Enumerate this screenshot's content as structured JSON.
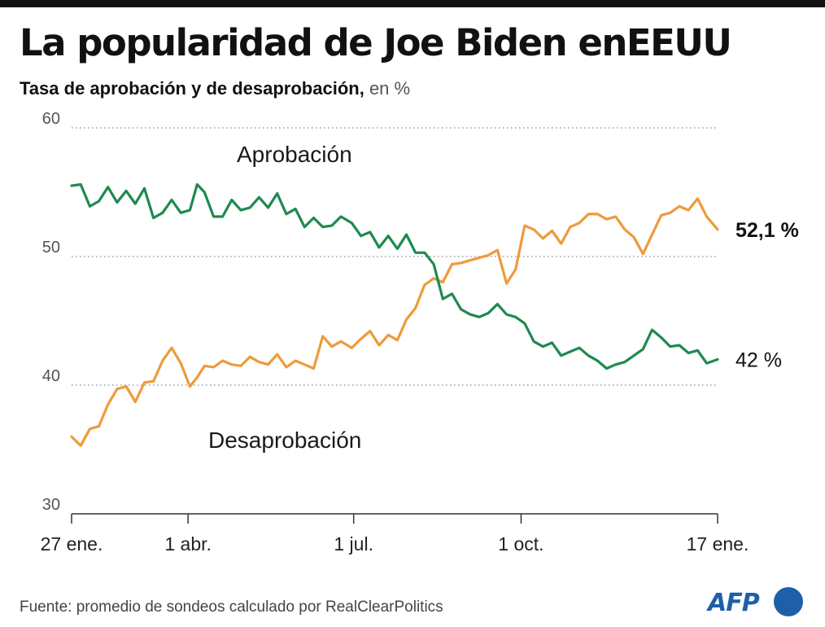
{
  "header": {
    "title": "La popularidad de Joe Biden enEEUU",
    "subtitle_bold": "Tasa de aprobación y de desaprobación,",
    "subtitle_unit": " en %"
  },
  "footer": {
    "source": "Fuente: promedio de sondeos calculado por RealClearPolitics",
    "logo_text": "AFP"
  },
  "colors": {
    "approval": "#1e8a4f",
    "disapproval": "#ef9a3b",
    "grid": "#9a9a9a",
    "axis": "#333333",
    "brand": "#1f5fa8"
  },
  "chart_data": {
    "type": "line",
    "title": "La popularidad de Joe Biden enEEUU",
    "subtitle": "Tasa de aprobación y de desaprobación, en %",
    "ylim": [
      30,
      60
    ],
    "yticks": [
      30,
      40,
      50,
      60
    ],
    "grid": "horizontal dotted",
    "xlim": [
      "2021-01-27",
      "2022-01-17"
    ],
    "xticks": [
      {
        "date": "2021-01-27",
        "label": "27 ene."
      },
      {
        "date": "2021-04-01",
        "label": "1 abr."
      },
      {
        "date": "2021-07-01",
        "label": "1 jul."
      },
      {
        "date": "2021-10-01",
        "label": "1 oct."
      },
      {
        "date": "2022-01-17",
        "label": "17 ene."
      }
    ],
    "series": [
      {
        "name": "Aprobación",
        "end_label": "42 %",
        "points": [
          [
            "2021-01-27",
            55.5
          ],
          [
            "2021-02-01",
            55.6
          ],
          [
            "2021-02-06",
            53.9
          ],
          [
            "2021-02-11",
            54.3
          ],
          [
            "2021-02-16",
            55.4
          ],
          [
            "2021-02-21",
            54.2
          ],
          [
            "2021-02-26",
            55.1
          ],
          [
            "2021-03-03",
            54.1
          ],
          [
            "2021-03-08",
            55.3
          ],
          [
            "2021-03-13",
            53.0
          ],
          [
            "2021-03-18",
            53.4
          ],
          [
            "2021-03-23",
            54.4
          ],
          [
            "2021-03-28",
            53.4
          ],
          [
            "2021-04-02",
            53.6
          ],
          [
            "2021-04-06",
            55.6
          ],
          [
            "2021-04-10",
            55.0
          ],
          [
            "2021-04-15",
            53.1
          ],
          [
            "2021-04-20",
            53.1
          ],
          [
            "2021-04-25",
            54.4
          ],
          [
            "2021-04-30",
            53.6
          ],
          [
            "2021-05-05",
            53.8
          ],
          [
            "2021-05-10",
            54.6
          ],
          [
            "2021-05-15",
            53.8
          ],
          [
            "2021-05-20",
            54.9
          ],
          [
            "2021-05-25",
            53.3
          ],
          [
            "2021-05-30",
            53.7
          ],
          [
            "2021-06-04",
            52.3
          ],
          [
            "2021-06-09",
            53.0
          ],
          [
            "2021-06-14",
            52.3
          ],
          [
            "2021-06-19",
            52.4
          ],
          [
            "2021-06-24",
            53.1
          ],
          [
            "2021-06-30",
            52.6
          ],
          [
            "2021-07-05",
            51.6
          ],
          [
            "2021-07-10",
            51.9
          ],
          [
            "2021-07-15",
            50.7
          ],
          [
            "2021-07-20",
            51.6
          ],
          [
            "2021-07-25",
            50.6
          ],
          [
            "2021-07-30",
            51.7
          ],
          [
            "2021-08-04",
            50.3
          ],
          [
            "2021-08-09",
            50.3
          ],
          [
            "2021-08-14",
            49.4
          ],
          [
            "2021-08-19",
            46.7
          ],
          [
            "2021-08-24",
            47.1
          ],
          [
            "2021-08-29",
            45.9
          ],
          [
            "2021-09-03",
            45.5
          ],
          [
            "2021-09-08",
            45.3
          ],
          [
            "2021-09-13",
            45.6
          ],
          [
            "2021-09-18",
            46.3
          ],
          [
            "2021-09-23",
            45.5
          ],
          [
            "2021-09-28",
            45.3
          ],
          [
            "2021-10-03",
            44.8
          ],
          [
            "2021-10-08",
            43.4
          ],
          [
            "2021-10-13",
            43.0
          ],
          [
            "2021-10-18",
            43.3
          ],
          [
            "2021-10-23",
            42.3
          ],
          [
            "2021-10-28",
            42.6
          ],
          [
            "2021-11-02",
            42.9
          ],
          [
            "2021-11-07",
            42.3
          ],
          [
            "2021-11-12",
            41.9
          ],
          [
            "2021-11-17",
            41.3
          ],
          [
            "2021-11-22",
            41.6
          ],
          [
            "2021-11-27",
            41.8
          ],
          [
            "2021-12-02",
            42.3
          ],
          [
            "2021-12-07",
            42.8
          ],
          [
            "2021-12-12",
            44.3
          ],
          [
            "2021-12-17",
            43.7
          ],
          [
            "2021-12-22",
            43.0
          ],
          [
            "2021-12-27",
            43.1
          ],
          [
            "2022-01-01",
            42.5
          ],
          [
            "2022-01-06",
            42.7
          ],
          [
            "2022-01-11",
            41.7
          ],
          [
            "2022-01-17",
            42.0
          ]
        ]
      },
      {
        "name": "Desaprobación",
        "end_label": "52,1 %",
        "points": [
          [
            "2021-01-27",
            36.0
          ],
          [
            "2021-02-01",
            35.3
          ],
          [
            "2021-02-06",
            36.6
          ],
          [
            "2021-02-11",
            36.8
          ],
          [
            "2021-02-16",
            38.5
          ],
          [
            "2021-02-21",
            39.7
          ],
          [
            "2021-02-26",
            39.9
          ],
          [
            "2021-03-03",
            38.7
          ],
          [
            "2021-03-08",
            40.2
          ],
          [
            "2021-03-13",
            40.3
          ],
          [
            "2021-03-18",
            41.9
          ],
          [
            "2021-03-23",
            42.9
          ],
          [
            "2021-03-28",
            41.7
          ],
          [
            "2021-04-02",
            39.9
          ],
          [
            "2021-04-06",
            40.6
          ],
          [
            "2021-04-10",
            41.5
          ],
          [
            "2021-04-15",
            41.4
          ],
          [
            "2021-04-20",
            41.9
          ],
          [
            "2021-04-25",
            41.6
          ],
          [
            "2021-04-30",
            41.5
          ],
          [
            "2021-05-05",
            42.2
          ],
          [
            "2021-05-10",
            41.8
          ],
          [
            "2021-05-15",
            41.6
          ],
          [
            "2021-05-20",
            42.4
          ],
          [
            "2021-05-25",
            41.4
          ],
          [
            "2021-05-30",
            41.9
          ],
          [
            "2021-06-04",
            41.6
          ],
          [
            "2021-06-09",
            41.3
          ],
          [
            "2021-06-14",
            43.8
          ],
          [
            "2021-06-19",
            43.0
          ],
          [
            "2021-06-24",
            43.4
          ],
          [
            "2021-06-30",
            42.9
          ],
          [
            "2021-07-05",
            43.6
          ],
          [
            "2021-07-10",
            44.2
          ],
          [
            "2021-07-15",
            43.1
          ],
          [
            "2021-07-20",
            43.9
          ],
          [
            "2021-07-25",
            43.5
          ],
          [
            "2021-07-30",
            45.1
          ],
          [
            "2021-08-04",
            46.0
          ],
          [
            "2021-08-09",
            47.8
          ],
          [
            "2021-08-14",
            48.3
          ],
          [
            "2021-08-19",
            48.0
          ],
          [
            "2021-08-24",
            49.4
          ],
          [
            "2021-08-29",
            49.5
          ],
          [
            "2021-09-03",
            49.7
          ],
          [
            "2021-09-08",
            49.9
          ],
          [
            "2021-09-13",
            50.1
          ],
          [
            "2021-09-18",
            50.5
          ],
          [
            "2021-09-23",
            47.9
          ],
          [
            "2021-09-28",
            49.0
          ],
          [
            "2021-10-03",
            52.4
          ],
          [
            "2021-10-08",
            52.1
          ],
          [
            "2021-10-13",
            51.4
          ],
          [
            "2021-10-18",
            52.0
          ],
          [
            "2021-10-23",
            51.0
          ],
          [
            "2021-10-28",
            52.3
          ],
          [
            "2021-11-02",
            52.6
          ],
          [
            "2021-11-07",
            53.3
          ],
          [
            "2021-11-12",
            53.3
          ],
          [
            "2021-11-17",
            52.9
          ],
          [
            "2021-11-22",
            53.1
          ],
          [
            "2021-11-27",
            52.1
          ],
          [
            "2021-12-02",
            51.5
          ],
          [
            "2021-12-07",
            50.2
          ],
          [
            "2021-12-12",
            51.7
          ],
          [
            "2021-12-17",
            53.2
          ],
          [
            "2021-12-22",
            53.4
          ],
          [
            "2021-12-27",
            53.9
          ],
          [
            "2022-01-01",
            53.6
          ],
          [
            "2022-01-06",
            54.5
          ],
          [
            "2022-01-11",
            53.1
          ],
          [
            "2022-01-17",
            52.1
          ]
        ]
      }
    ]
  }
}
